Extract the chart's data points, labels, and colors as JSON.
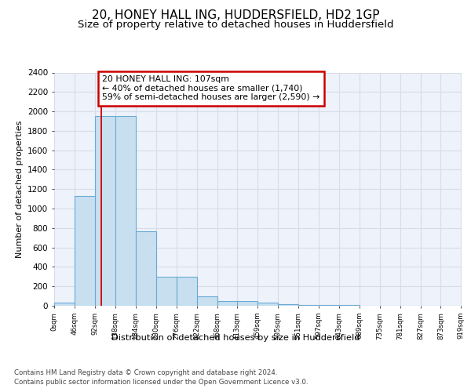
{
  "title": "20, HONEY HALL ING, HUDDERSFIELD, HD2 1GP",
  "subtitle": "Size of property relative to detached houses in Huddersfield",
  "xlabel": "Distribution of detached houses by size in Huddersfield",
  "ylabel": "Number of detached properties",
  "footer_line1": "Contains HM Land Registry data © Crown copyright and database right 2024.",
  "footer_line2": "Contains public sector information licensed under the Open Government Licence v3.0.",
  "bin_edges": [
    0,
    46,
    92,
    138,
    184,
    230,
    276,
    322,
    368,
    413,
    459,
    505,
    551,
    597,
    643,
    689,
    735,
    781,
    827,
    873,
    919
  ],
  "bar_heights": [
    35,
    1130,
    1950,
    1950,
    770,
    295,
    295,
    100,
    50,
    50,
    30,
    20,
    10,
    5,
    5,
    3,
    3,
    2,
    2,
    1
  ],
  "bar_color": "#c8dff0",
  "bar_edge_color": "#6aaad4",
  "property_size": 107,
  "property_line_color": "#cc0000",
  "annotation_text_line1": "20 HONEY HALL ING: 107sqm",
  "annotation_text_line2": "← 40% of detached houses are smaller (1,740)",
  "annotation_text_line3": "59% of semi-detached houses are larger (2,590) →",
  "annotation_box_color": "#ffffff",
  "annotation_box_edge_color": "#cc0000",
  "ylim": [
    0,
    2400
  ],
  "yticks": [
    0,
    200,
    400,
    600,
    800,
    1000,
    1200,
    1400,
    1600,
    1800,
    2000,
    2200,
    2400
  ],
  "background_color": "#eef2fa",
  "grid_color": "#d8dce8",
  "title_fontsize": 11,
  "subtitle_fontsize": 9.5,
  "tick_labels": [
    "0sqm",
    "46sqm",
    "92sqm",
    "138sqm",
    "184sqm",
    "230sqm",
    "276sqm",
    "322sqm",
    "368sqm",
    "413sqm",
    "459sqm",
    "505sqm",
    "551sqm",
    "597sqm",
    "643sqm",
    "689sqm",
    "735sqm",
    "781sqm",
    "827sqm",
    "873sqm",
    "919sqm"
  ]
}
